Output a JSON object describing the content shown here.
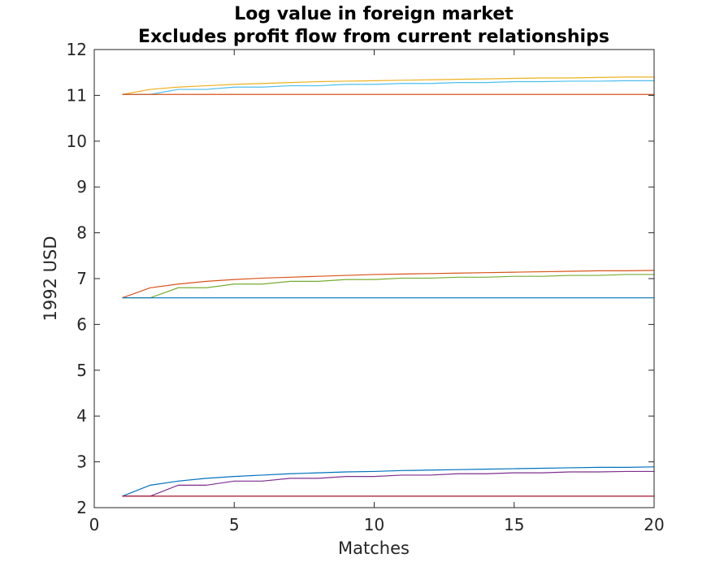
{
  "chart_data": {
    "type": "line",
    "title": "Log value in foreign market",
    "subtitle": "Excludes profit flow from current relationships",
    "xlabel": "Matches",
    "ylabel": "1992 USD",
    "xlim": [
      0,
      20
    ],
    "ylim": [
      2,
      12
    ],
    "xticks": [
      "0",
      "5",
      "10",
      "15",
      "20"
    ],
    "yticks": [
      "2",
      "3",
      "4",
      "5",
      "6",
      "7",
      "8",
      "9",
      "10",
      "11",
      "12"
    ],
    "grid": false,
    "x": [
      1,
      2,
      3,
      4,
      5,
      6,
      7,
      8,
      9,
      10,
      11,
      12,
      13,
      14,
      15,
      16,
      17,
      18,
      19,
      20
    ],
    "series": [
      {
        "color": "#0072BD",
        "values": [
          2.25,
          2.49,
          2.58,
          2.64,
          2.68,
          2.71,
          2.74,
          2.76,
          2.78,
          2.79,
          2.81,
          2.82,
          2.83,
          2.84,
          2.85,
          2.86,
          2.87,
          2.88,
          2.88,
          2.89
        ]
      },
      {
        "color": "#D95319",
        "values": [
          6.58,
          6.8,
          6.88,
          6.94,
          6.98,
          7.01,
          7.03,
          7.05,
          7.07,
          7.09,
          7.1,
          7.11,
          7.12,
          7.13,
          7.14,
          7.15,
          7.16,
          7.17,
          7.17,
          7.18
        ]
      },
      {
        "color": "#EDB120",
        "values": [
          11.02,
          11.13,
          11.18,
          11.21,
          11.24,
          11.26,
          11.28,
          11.3,
          11.31,
          11.32,
          11.33,
          11.34,
          11.35,
          11.36,
          11.37,
          11.38,
          11.38,
          11.39,
          11.4,
          11.4
        ]
      },
      {
        "color": "#7E2F8E",
        "values": [
          2.25,
          2.25,
          2.49,
          2.49,
          2.58,
          2.58,
          2.64,
          2.64,
          2.68,
          2.68,
          2.71,
          2.71,
          2.74,
          2.74,
          2.76,
          2.76,
          2.78,
          2.78,
          2.79,
          2.79
        ]
      },
      {
        "color": "#77AC30",
        "values": [
          6.58,
          6.58,
          6.8,
          6.8,
          6.88,
          6.88,
          6.94,
          6.94,
          6.98,
          6.98,
          7.01,
          7.01,
          7.03,
          7.03,
          7.05,
          7.05,
          7.07,
          7.07,
          7.09,
          7.09
        ]
      },
      {
        "color": "#4DBEEE",
        "values": [
          11.02,
          11.02,
          11.13,
          11.13,
          11.18,
          11.18,
          11.21,
          11.21,
          11.24,
          11.24,
          11.26,
          11.26,
          11.28,
          11.28,
          11.3,
          11.3,
          11.31,
          11.31,
          11.32,
          11.32
        ]
      },
      {
        "color": "#A2142F",
        "values": [
          2.25,
          2.25,
          2.25,
          2.25,
          2.25,
          2.25,
          2.25,
          2.25,
          2.25,
          2.25,
          2.25,
          2.25,
          2.25,
          2.25,
          2.25,
          2.25,
          2.25,
          2.25,
          2.25,
          2.25
        ]
      },
      {
        "color": "#0072BD",
        "values": [
          6.58,
          6.58,
          6.58,
          6.58,
          6.58,
          6.58,
          6.58,
          6.58,
          6.58,
          6.58,
          6.58,
          6.58,
          6.58,
          6.58,
          6.58,
          6.58,
          6.58,
          6.58,
          6.58,
          6.58
        ]
      },
      {
        "color": "#D95319",
        "values": [
          11.02,
          11.02,
          11.02,
          11.02,
          11.02,
          11.02,
          11.02,
          11.02,
          11.02,
          11.02,
          11.02,
          11.02,
          11.02,
          11.02,
          11.02,
          11.02,
          11.02,
          11.02,
          11.02,
          11.02
        ]
      }
    ]
  }
}
